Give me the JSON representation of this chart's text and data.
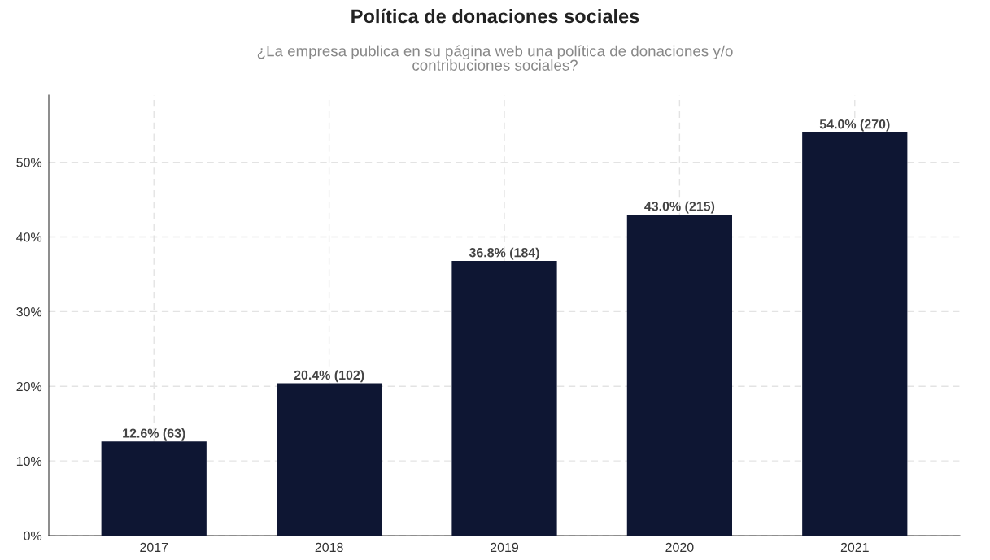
{
  "chart_data": {
    "type": "bar",
    "title": "Política de donaciones sociales",
    "subtitle": "¿La empresa publica en su página web una política de donaciones y/o\ncontribuciones sociales?",
    "categories": [
      "2017",
      "2018",
      "2019",
      "2020",
      "2021"
    ],
    "values": [
      12.6,
      20.4,
      36.8,
      43.0,
      54.0
    ],
    "value_labels": [
      "12.6% (63)",
      "20.4% (102)",
      "36.8% (184)",
      "43.0% (215)",
      "54.0% (270)"
    ],
    "color": "#0e1633",
    "ylim": [
      0,
      59
    ],
    "yticks": [
      {
        "value": 0,
        "label": "0%"
      },
      {
        "value": 10,
        "label": "10%"
      },
      {
        "value": 20,
        "label": "20%"
      },
      {
        "value": 30,
        "label": "30%"
      },
      {
        "value": 40,
        "label": "40%"
      },
      {
        "value": 50,
        "label": "50%"
      }
    ],
    "grid": true,
    "line_style": "dashed"
  }
}
